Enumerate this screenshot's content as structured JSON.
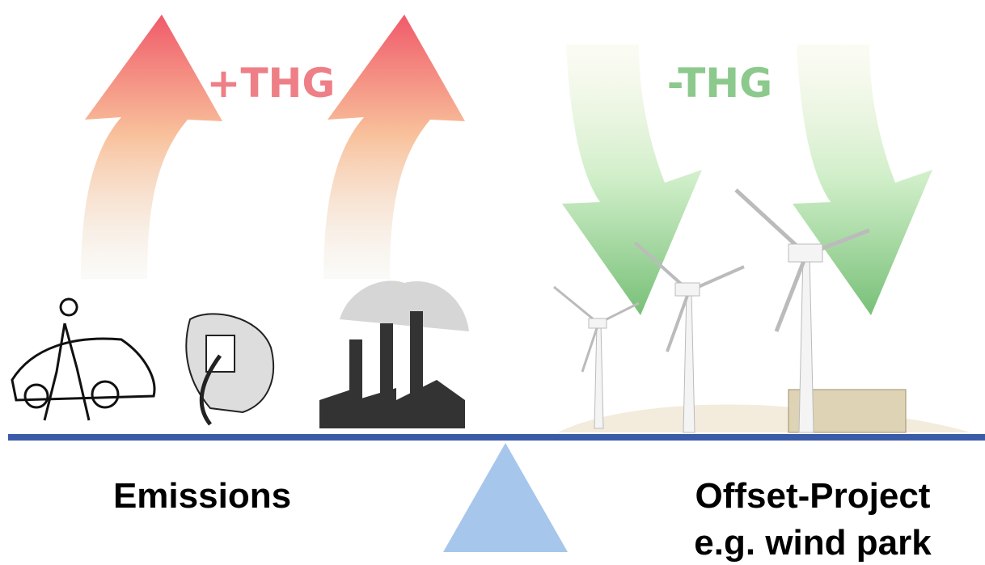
{
  "labels": {
    "plus": "+THG",
    "minus": "-THG",
    "left": "Emissions",
    "right_line1": "Offset-Project",
    "right_line2": "e.g. wind park"
  }
}
